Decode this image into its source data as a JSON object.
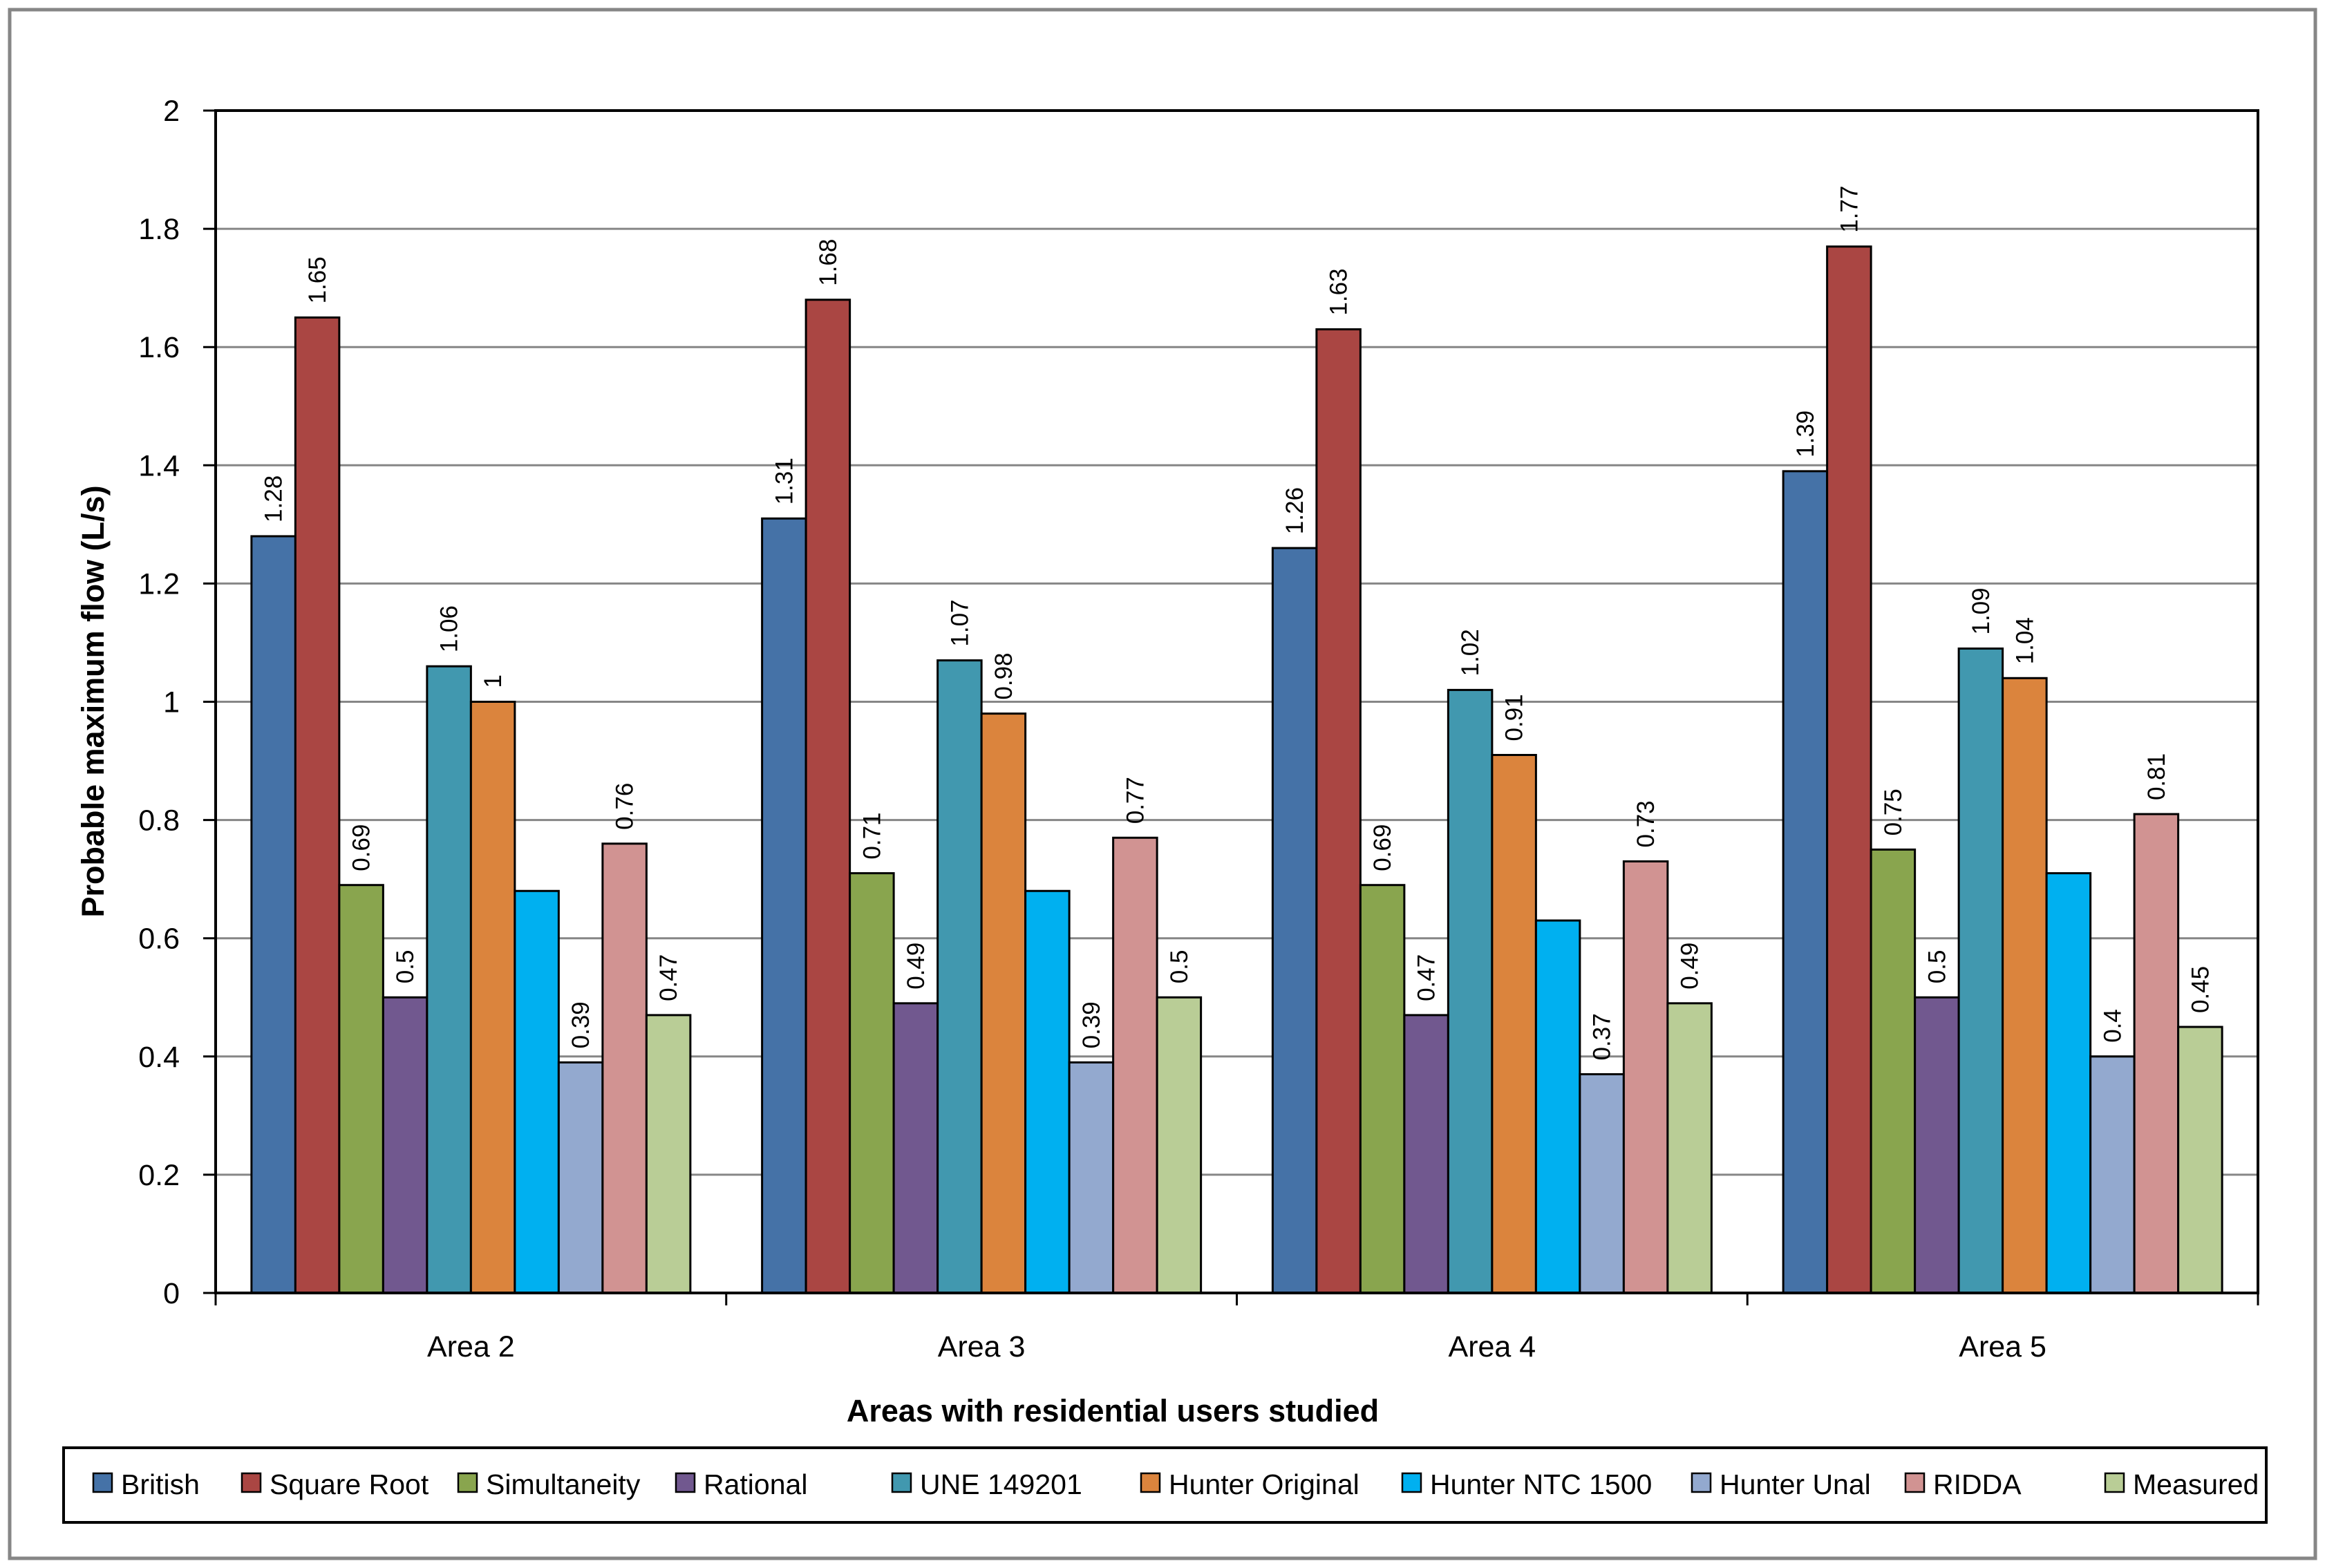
{
  "chart_data": {
    "type": "bar",
    "title": "",
    "xlabel": "Areas with residential users studied",
    "ylabel": "Probable maximum flow (L/s)",
    "ylim": [
      0,
      2
    ],
    "yticks": [
      "0",
      "0.2",
      "0.4",
      "0.6",
      "0.8",
      "1",
      "1.2",
      "1.4",
      "1.6",
      "1.8",
      "2"
    ],
    "grid": true,
    "legend_position": "bottom",
    "categories": [
      "Area 2",
      "Area 3",
      "Area 4",
      "Area 5"
    ],
    "series": [
      {
        "name": "British",
        "color": "#4572A7",
        "values": [
          1.28,
          1.31,
          1.26,
          1.39
        ],
        "labels": [
          "1.28",
          "1.31",
          "1.26",
          "1.39"
        ]
      },
      {
        "name": "Square Root",
        "color": "#AA4643",
        "values": [
          1.65,
          1.68,
          1.63,
          1.77
        ],
        "labels": [
          "1.65",
          "1.68",
          "1.63",
          "1.77"
        ]
      },
      {
        "name": "Simultaneity",
        "color": "#89A54E",
        "values": [
          0.69,
          0.71,
          0.69,
          0.75
        ],
        "labels": [
          "0.69",
          "0.71",
          "0.69",
          "0.75"
        ]
      },
      {
        "name": "Rational",
        "color": "#71588F",
        "values": [
          0.5,
          0.49,
          0.47,
          0.5
        ],
        "labels": [
          "0.5",
          "0.49",
          "0.47",
          "0.5"
        ]
      },
      {
        "name": "UNE 149201",
        "color": "#4198AF",
        "values": [
          1.06,
          1.07,
          1.02,
          1.09
        ],
        "labels": [
          "1.06",
          "1.07",
          "1.02",
          "1.09"
        ]
      },
      {
        "name": "Hunter Original",
        "color": "#DB843D",
        "values": [
          1.0,
          0.98,
          0.91,
          1.04
        ],
        "labels": [
          "1",
          "0.98",
          "0.91",
          "1.04"
        ]
      },
      {
        "name": "Hunter NTC 1500",
        "color": "#00B0F0",
        "values": [
          0.68,
          0.68,
          0.63,
          0.71
        ],
        "labels": [
          "",
          "",
          "",
          ""
        ]
      },
      {
        "name": "Hunter Unal",
        "color": "#93A9CF",
        "values": [
          0.39,
          0.39,
          0.37,
          0.4
        ],
        "labels": [
          "0.39",
          "0.39",
          "0.37",
          "0.4"
        ]
      },
      {
        "name": "RIDDA",
        "color": "#D19392",
        "values": [
          0.76,
          0.77,
          0.73,
          0.81
        ],
        "labels": [
          "0.76",
          "0.77",
          "0.73",
          "0.81"
        ]
      },
      {
        "name": "Measured",
        "color": "#B9CD96",
        "values": [
          0.47,
          0.5,
          0.49,
          0.45
        ],
        "labels": [
          "0.47",
          "0.5",
          "0.49",
          "0.45"
        ]
      }
    ]
  }
}
